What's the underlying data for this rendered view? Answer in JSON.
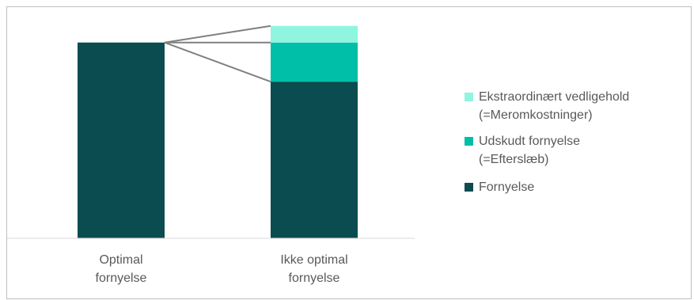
{
  "colors": {
    "fornyelse": "#0a4c4f",
    "udskudt": "#00bfa9",
    "ekstra": "#8ff5df",
    "axis": "#d9d9d9",
    "connector": "#808080",
    "text": "#595959"
  },
  "chart_data": {
    "type": "bar",
    "stacked": true,
    "categories": [
      [
        "Optimal",
        "fornyelse"
      ],
      [
        "Ikke optimal",
        "fornyelse"
      ]
    ],
    "series": [
      {
        "key": "fornyelse",
        "values": [
          100,
          80
        ]
      },
      {
        "key": "udskudt",
        "values": [
          0,
          20
        ]
      },
      {
        "key": "ekstra",
        "values": [
          0,
          8.5
        ]
      }
    ],
    "ylim": [
      0,
      110
    ],
    "legend": {
      "position": "right",
      "entries": [
        {
          "key": "ekstra",
          "lines": [
            "Ekstraordinært vedligehold",
            "(=Meromkostninger)"
          ]
        },
        {
          "key": "udskudt",
          "lines": [
            "Udskudt fornyelse",
            "(=Efterslæb)"
          ]
        },
        {
          "key": "fornyelse",
          "lines": [
            "Fornyelse"
          ]
        }
      ]
    },
    "grid": false,
    "connector_lines": true
  }
}
